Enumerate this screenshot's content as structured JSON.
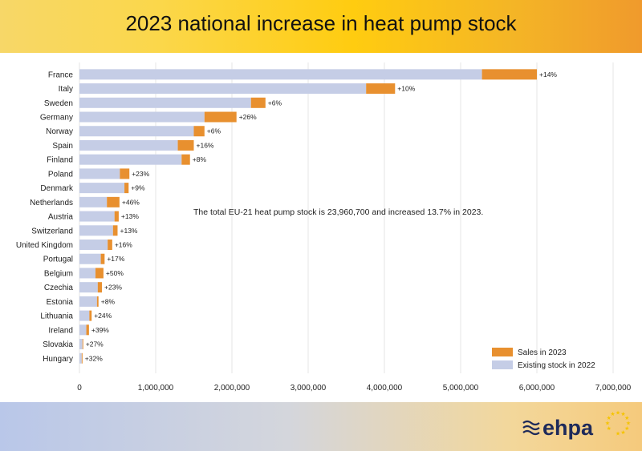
{
  "title": "2023 national increase in heat pump stock",
  "chart_data": {
    "type": "bar",
    "stacked": true,
    "orientation": "horizontal",
    "categories": [
      "France",
      "Italy",
      "Sweden",
      "Germany",
      "Norway",
      "Spain",
      "Finland",
      "Poland",
      "Denmark",
      "Netherlands",
      "Austria",
      "Switzerland",
      "United Kingdom",
      "Portugal",
      "Belgium",
      "Czechia",
      "Estonia",
      "Lithuania",
      "Ireland",
      "Slovakia",
      "Hungary"
    ],
    "series": [
      {
        "name": "Existing stock in 2022",
        "color": "#c5cde6",
        "values": [
          5280000,
          3760000,
          2250000,
          1640000,
          1500000,
          1290000,
          1340000,
          530000,
          590000,
          360000,
          460000,
          440000,
          370000,
          280000,
          210000,
          240000,
          230000,
          130000,
          90000,
          40000,
          30000
        ]
      },
      {
        "name": "Sales in 2023",
        "color": "#e8902f",
        "values": [
          720000,
          380000,
          190000,
          420000,
          140000,
          210000,
          110000,
          125000,
          55000,
          165000,
          55000,
          60000,
          60000,
          50000,
          105000,
          55000,
          20000,
          30000,
          35000,
          10000,
          10000
        ]
      }
    ],
    "data_labels": [
      "+14%",
      "+10%",
      "+6%",
      "+26%",
      "+6%",
      "+16%",
      "+8%",
      "+23%",
      "+9%",
      "+46%",
      "+13%",
      "+13%",
      "+16%",
      "+17%",
      "+50%",
      "+23%",
      "+8%",
      "+24%",
      "+39%",
      "+27%",
      "+32%"
    ],
    "xlim": [
      0,
      7000000
    ],
    "xticks": [
      "0",
      "1,000,000",
      "2,000,000",
      "3,000,000",
      "4,000,000",
      "5,000,000",
      "6,000,000",
      "7,000,000"
    ],
    "annotation": "The total EU-21 heat pump stock is 23,960,700 and increased 13.7% in 2023.",
    "grid": true,
    "legend_position": "bottom-right"
  },
  "logo": {
    "text": "ehpa",
    "star_color": "#f5c400",
    "text_color": "#1e2a5a"
  }
}
